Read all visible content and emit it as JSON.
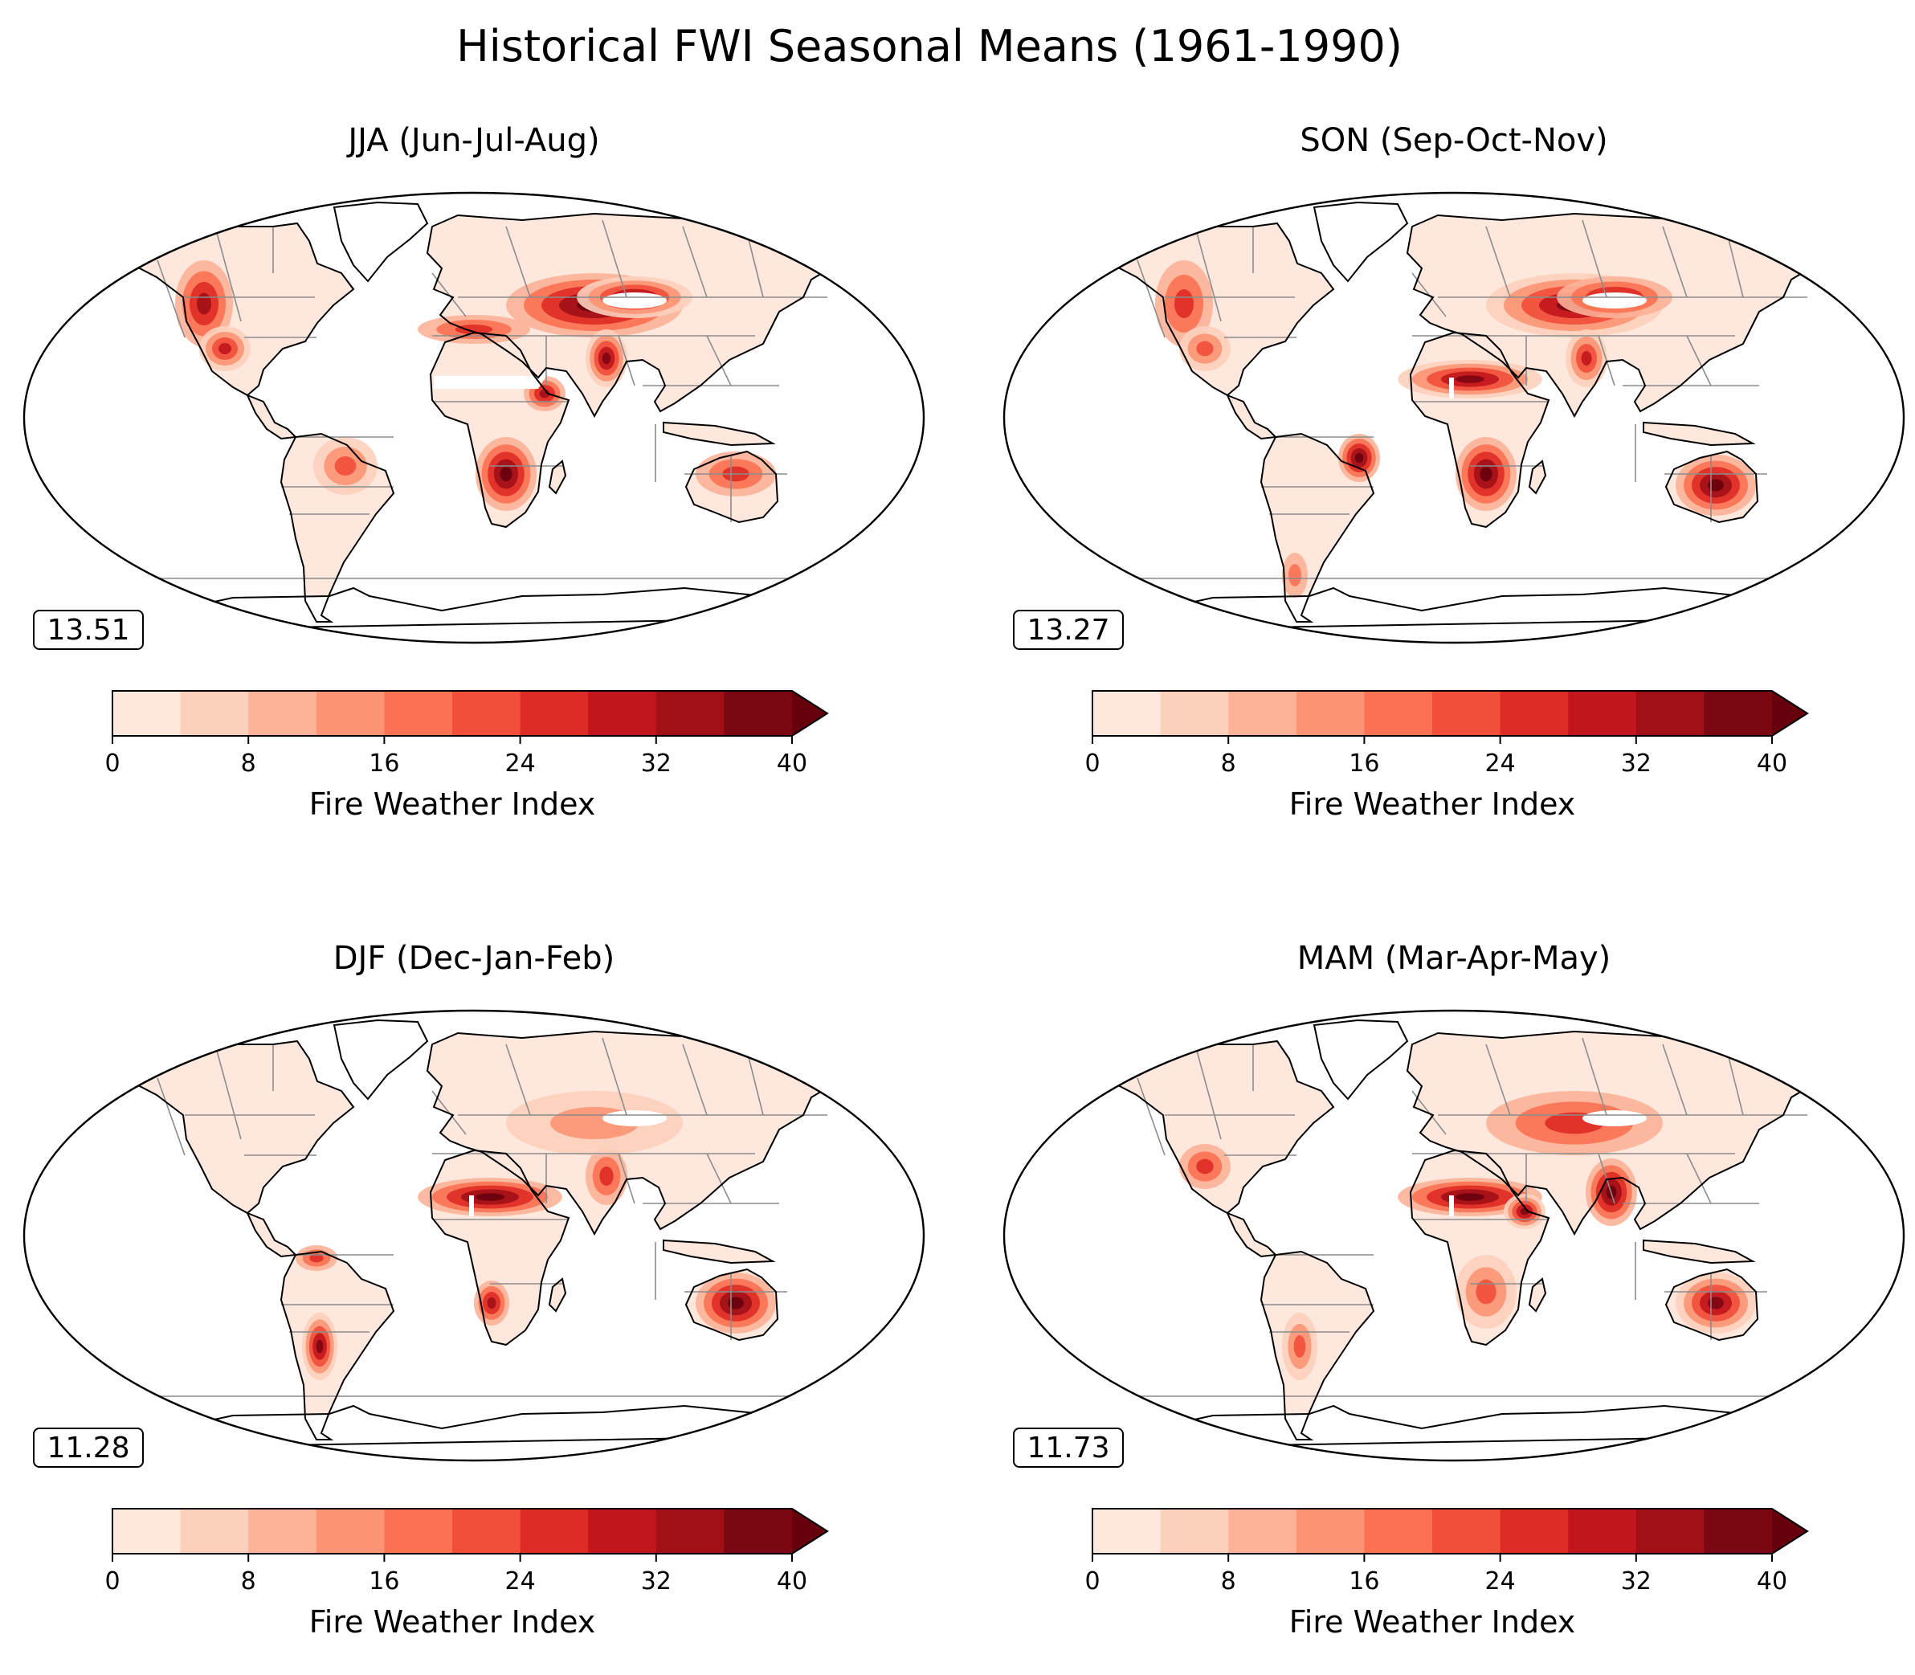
{
  "figure": {
    "title": "Historical FWI Seasonal Means (1961-1990)"
  },
  "colorbar": {
    "label": "Fire Weather Index",
    "ticks": [
      "0",
      "8",
      "16",
      "24",
      "32",
      "40"
    ],
    "levels": [
      0,
      4,
      8,
      12,
      16,
      20,
      24,
      28,
      32,
      36,
      40
    ],
    "extend": "max",
    "colors": [
      "#fee8dd",
      "#fdd0bc",
      "#fcb398",
      "#fc9474",
      "#fb7252",
      "#f14f3a",
      "#de2b25",
      "#c2161c",
      "#a11016",
      "#7b0713",
      "#67000d"
    ]
  },
  "panels": [
    {
      "season": "JJA (Jun-Jul-Aug)",
      "mean": "13.51",
      "hotspots": [
        {
          "region": "western-us",
          "fwi": 34
        },
        {
          "region": "mexico",
          "fwi": 28
        },
        {
          "region": "mediterranean",
          "fwi": 24
        },
        {
          "region": "middle-east-central-asia",
          "fwi": 40
        },
        {
          "region": "south-asia-west",
          "fwi": 36
        },
        {
          "region": "horn-of-africa",
          "fwi": 32
        },
        {
          "region": "southern-africa",
          "fwi": 40
        },
        {
          "region": "brazil-interior",
          "fwi": 20
        },
        {
          "region": "australia-north",
          "fwi": 26
        },
        {
          "region": "central-asia-dry",
          "fwi": 38
        }
      ]
    },
    {
      "season": "SON (Sep-Oct-Nov)",
      "mean": "13.27",
      "hotspots": [
        {
          "region": "western-us",
          "fwi": 24
        },
        {
          "region": "mexico",
          "fwi": 22
        },
        {
          "region": "sahel",
          "fwi": 36
        },
        {
          "region": "middle-east-central-asia",
          "fwi": 38
        },
        {
          "region": "south-asia-west",
          "fwi": 30
        },
        {
          "region": "southern-africa",
          "fwi": 40
        },
        {
          "region": "brazil-east",
          "fwi": 40
        },
        {
          "region": "australia",
          "fwi": 40
        },
        {
          "region": "central-asia-dry",
          "fwi": 34
        },
        {
          "region": "patagonia",
          "fwi": 16
        }
      ]
    },
    {
      "season": "DJF (Dec-Jan-Feb)",
      "mean": "11.28",
      "hotspots": [
        {
          "region": "sahel",
          "fwi": 40
        },
        {
          "region": "south-asia-west",
          "fwi": 24
        },
        {
          "region": "argentina",
          "fwi": 36
        },
        {
          "region": "southern-africa-west",
          "fwi": 32
        },
        {
          "region": "australia",
          "fwi": 40
        },
        {
          "region": "venezuela",
          "fwi": 24
        },
        {
          "region": "middle-east-central-asia",
          "fwi": 14
        }
      ]
    },
    {
      "season": "MAM (Mar-Apr-May)",
      "mean": "11.73",
      "hotspots": [
        {
          "region": "sahel",
          "fwi": 40
        },
        {
          "region": "india",
          "fwi": 40
        },
        {
          "region": "horn-of-africa",
          "fwi": 36
        },
        {
          "region": "mexico",
          "fwi": 24
        },
        {
          "region": "australia",
          "fwi": 36
        },
        {
          "region": "southern-africa",
          "fwi": 22
        },
        {
          "region": "middle-east-central-asia",
          "fwi": 26
        },
        {
          "region": "argentina",
          "fwi": 20
        }
      ]
    }
  ]
}
